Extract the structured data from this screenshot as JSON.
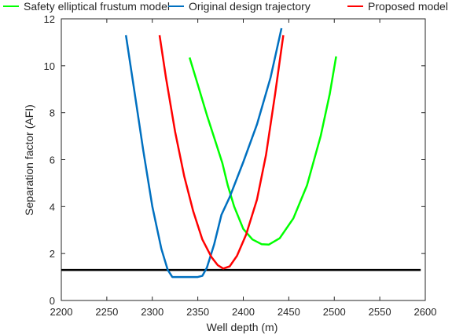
{
  "chart_data": {
    "type": "line",
    "xlabel": "Well depth (m)",
    "ylabel": "Separation factor (AFI)",
    "xlim": [
      2200,
      2600
    ],
    "ylim": [
      0,
      12
    ],
    "xticks": [
      2200,
      2250,
      2300,
      2350,
      2400,
      2450,
      2500,
      2550,
      2600
    ],
    "yticks": [
      0,
      2,
      4,
      6,
      8,
      10,
      12
    ],
    "legend": "top",
    "grid": false,
    "series": [
      {
        "name": "Safety elliptical frustum model",
        "color": "#00ff00",
        "points": [
          [
            2341,
            10.35
          ],
          [
            2350,
            9.2
          ],
          [
            2360,
            7.9
          ],
          [
            2370,
            6.7
          ],
          [
            2377,
            5.85
          ],
          [
            2383,
            4.9
          ],
          [
            2390,
            4.0
          ],
          [
            2400,
            3.05
          ],
          [
            2410,
            2.6
          ],
          [
            2420,
            2.4
          ],
          [
            2428,
            2.38
          ],
          [
            2440,
            2.65
          ],
          [
            2455,
            3.5
          ],
          [
            2470,
            4.9
          ],
          [
            2485,
            7.0
          ],
          [
            2495,
            8.8
          ],
          [
            2502,
            10.4
          ]
        ]
      },
      {
        "name": "Original design trajectory",
        "color": "#0070c0",
        "points": [
          [
            2271,
            11.3
          ],
          [
            2280,
            9.0
          ],
          [
            2290,
            6.4
          ],
          [
            2300,
            4.0
          ],
          [
            2310,
            2.2
          ],
          [
            2317,
            1.3
          ],
          [
            2322,
            1.0
          ],
          [
            2340,
            1.0
          ],
          [
            2350,
            1.0
          ],
          [
            2355,
            1.05
          ],
          [
            2360,
            1.4
          ],
          [
            2368,
            2.4
          ],
          [
            2376,
            3.65
          ],
          [
            2385,
            4.4
          ],
          [
            2400,
            5.9
          ],
          [
            2415,
            7.5
          ],
          [
            2430,
            9.5
          ],
          [
            2442,
            11.6
          ]
        ]
      },
      {
        "name": "Proposed model",
        "color": "#ff0000",
        "points": [
          [
            2308,
            11.3
          ],
          [
            2315,
            9.5
          ],
          [
            2325,
            7.2
          ],
          [
            2335,
            5.3
          ],
          [
            2345,
            3.8
          ],
          [
            2355,
            2.6
          ],
          [
            2365,
            1.85
          ],
          [
            2372,
            1.5
          ],
          [
            2378,
            1.36
          ],
          [
            2385,
            1.45
          ],
          [
            2393,
            1.9
          ],
          [
            2403,
            2.8
          ],
          [
            2415,
            4.3
          ],
          [
            2425,
            6.2
          ],
          [
            2435,
            8.8
          ],
          [
            2444,
            11.3
          ]
        ]
      }
    ],
    "reference_line": {
      "y": 1.3,
      "x_range": [
        2200,
        2595
      ],
      "color": "#000000"
    }
  }
}
